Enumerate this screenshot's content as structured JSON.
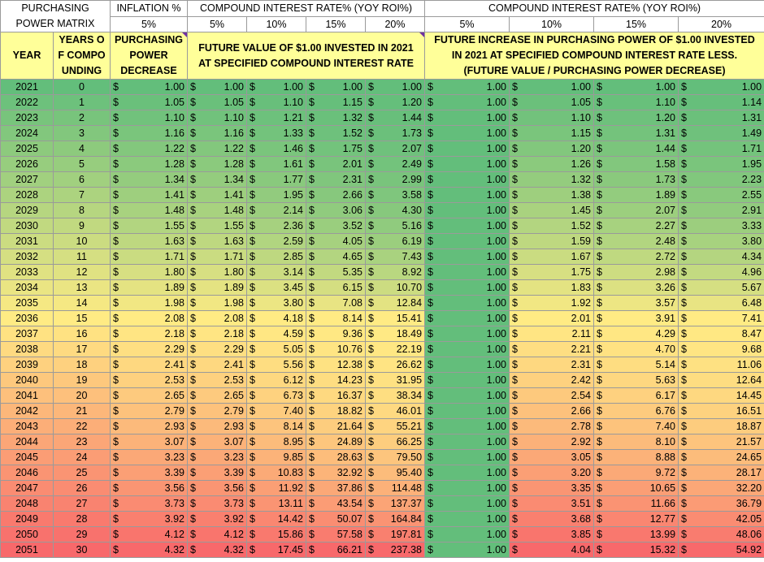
{
  "header": {
    "matrix_title": "PURCHASING POWER MATRIX",
    "inflation_label": "INFLATION %",
    "inflation_rate": "5%",
    "group1_label": "COMPOUND INTEREST RATE% (YOY ROI%)",
    "group2_label": "COMPOUND INTEREST RATE% (YOY ROI%)",
    "rates": [
      "5%",
      "10%",
      "15%",
      "20%"
    ],
    "col_year": "YEAR",
    "col_years": "YEARS OF COMPOUNDING",
    "col_pp": "PURCHASING POWER DECREASE",
    "col_fv": "FUTURE VALUE OF $1.00 INVESTED IN 2021 AT SPECIFIED COMPOUND INTEREST RATE",
    "col_fi": "FUTURE INCREASE IN PURCHASING POWER OF $1.00 INVESTED IN 2021 AT SPECIFIED COMPOUND INTEREST RATE LESS. (FUTURE VALUE / PURCHASING POWER DECREASE)"
  },
  "currency_symbol": "$",
  "rows": [
    {
      "year": "2021",
      "n": "0",
      "pp": "1.00",
      "fv": [
        "1.00",
        "1.00",
        "1.00",
        "1.00"
      ],
      "fi": [
        "1.00",
        "1.00",
        "1.00",
        "1.00"
      ]
    },
    {
      "year": "2022",
      "n": "1",
      "pp": "1.05",
      "fv": [
        "1.05",
        "1.10",
        "1.15",
        "1.20"
      ],
      "fi": [
        "1.00",
        "1.05",
        "1.10",
        "1.14"
      ]
    },
    {
      "year": "2023",
      "n": "2",
      "pp": "1.10",
      "fv": [
        "1.10",
        "1.21",
        "1.32",
        "1.44"
      ],
      "fi": [
        "1.00",
        "1.10",
        "1.20",
        "1.31"
      ]
    },
    {
      "year": "2024",
      "n": "3",
      "pp": "1.16",
      "fv": [
        "1.16",
        "1.33",
        "1.52",
        "1.73"
      ],
      "fi": [
        "1.00",
        "1.15",
        "1.31",
        "1.49"
      ]
    },
    {
      "year": "2025",
      "n": "4",
      "pp": "1.22",
      "fv": [
        "1.22",
        "1.46",
        "1.75",
        "2.07"
      ],
      "fi": [
        "1.00",
        "1.20",
        "1.44",
        "1.71"
      ]
    },
    {
      "year": "2026",
      "n": "5",
      "pp": "1.28",
      "fv": [
        "1.28",
        "1.61",
        "2.01",
        "2.49"
      ],
      "fi": [
        "1.00",
        "1.26",
        "1.58",
        "1.95"
      ]
    },
    {
      "year": "2027",
      "n": "6",
      "pp": "1.34",
      "fv": [
        "1.34",
        "1.77",
        "2.31",
        "2.99"
      ],
      "fi": [
        "1.00",
        "1.32",
        "1.73",
        "2.23"
      ]
    },
    {
      "year": "2028",
      "n": "7",
      "pp": "1.41",
      "fv": [
        "1.41",
        "1.95",
        "2.66",
        "3.58"
      ],
      "fi": [
        "1.00",
        "1.38",
        "1.89",
        "2.55"
      ]
    },
    {
      "year": "2029",
      "n": "8",
      "pp": "1.48",
      "fv": [
        "1.48",
        "2.14",
        "3.06",
        "4.30"
      ],
      "fi": [
        "1.00",
        "1.45",
        "2.07",
        "2.91"
      ]
    },
    {
      "year": "2030",
      "n": "9",
      "pp": "1.55",
      "fv": [
        "1.55",
        "2.36",
        "3.52",
        "5.16"
      ],
      "fi": [
        "1.00",
        "1.52",
        "2.27",
        "3.33"
      ]
    },
    {
      "year": "2031",
      "n": "10",
      "pp": "1.63",
      "fv": [
        "1.63",
        "2.59",
        "4.05",
        "6.19"
      ],
      "fi": [
        "1.00",
        "1.59",
        "2.48",
        "3.80"
      ]
    },
    {
      "year": "2032",
      "n": "11",
      "pp": "1.71",
      "fv": [
        "1.71",
        "2.85",
        "4.65",
        "7.43"
      ],
      "fi": [
        "1.00",
        "1.67",
        "2.72",
        "4.34"
      ]
    },
    {
      "year": "2033",
      "n": "12",
      "pp": "1.80",
      "fv": [
        "1.80",
        "3.14",
        "5.35",
        "8.92"
      ],
      "fi": [
        "1.00",
        "1.75",
        "2.98",
        "4.96"
      ]
    },
    {
      "year": "2034",
      "n": "13",
      "pp": "1.89",
      "fv": [
        "1.89",
        "3.45",
        "6.15",
        "10.70"
      ],
      "fi": [
        "1.00",
        "1.83",
        "3.26",
        "5.67"
      ]
    },
    {
      "year": "2035",
      "n": "14",
      "pp": "1.98",
      "fv": [
        "1.98",
        "3.80",
        "7.08",
        "12.84"
      ],
      "fi": [
        "1.00",
        "1.92",
        "3.57",
        "6.48"
      ]
    },
    {
      "year": "2036",
      "n": "15",
      "pp": "2.08",
      "fv": [
        "2.08",
        "4.18",
        "8.14",
        "15.41"
      ],
      "fi": [
        "1.00",
        "2.01",
        "3.91",
        "7.41"
      ]
    },
    {
      "year": "2037",
      "n": "16",
      "pp": "2.18",
      "fv": [
        "2.18",
        "4.59",
        "9.36",
        "18.49"
      ],
      "fi": [
        "1.00",
        "2.11",
        "4.29",
        "8.47"
      ]
    },
    {
      "year": "2038",
      "n": "17",
      "pp": "2.29",
      "fv": [
        "2.29",
        "5.05",
        "10.76",
        "22.19"
      ],
      "fi": [
        "1.00",
        "2.21",
        "4.70",
        "9.68"
      ]
    },
    {
      "year": "2039",
      "n": "18",
      "pp": "2.41",
      "fv": [
        "2.41",
        "5.56",
        "12.38",
        "26.62"
      ],
      "fi": [
        "1.00",
        "2.31",
        "5.14",
        "11.06"
      ]
    },
    {
      "year": "2040",
      "n": "19",
      "pp": "2.53",
      "fv": [
        "2.53",
        "6.12",
        "14.23",
        "31.95"
      ],
      "fi": [
        "1.00",
        "2.42",
        "5.63",
        "12.64"
      ]
    },
    {
      "year": "2041",
      "n": "20",
      "pp": "2.65",
      "fv": [
        "2.65",
        "6.73",
        "16.37",
        "38.34"
      ],
      "fi": [
        "1.00",
        "2.54",
        "6.17",
        "14.45"
      ]
    },
    {
      "year": "2042",
      "n": "21",
      "pp": "2.79",
      "fv": [
        "2.79",
        "7.40",
        "18.82",
        "46.01"
      ],
      "fi": [
        "1.00",
        "2.66",
        "6.76",
        "16.51"
      ]
    },
    {
      "year": "2043",
      "n": "22",
      "pp": "2.93",
      "fv": [
        "2.93",
        "8.14",
        "21.64",
        "55.21"
      ],
      "fi": [
        "1.00",
        "2.78",
        "7.40",
        "18.87"
      ]
    },
    {
      "year": "2044",
      "n": "23",
      "pp": "3.07",
      "fv": [
        "3.07",
        "8.95",
        "24.89",
        "66.25"
      ],
      "fi": [
        "1.00",
        "2.92",
        "8.10",
        "21.57"
      ]
    },
    {
      "year": "2045",
      "n": "24",
      "pp": "3.23",
      "fv": [
        "3.23",
        "9.85",
        "28.63",
        "79.50"
      ],
      "fi": [
        "1.00",
        "3.05",
        "8.88",
        "24.65"
      ]
    },
    {
      "year": "2046",
      "n": "25",
      "pp": "3.39",
      "fv": [
        "3.39",
        "10.83",
        "32.92",
        "95.40"
      ],
      "fi": [
        "1.00",
        "3.20",
        "9.72",
        "28.17"
      ]
    },
    {
      "year": "2047",
      "n": "26",
      "pp": "3.56",
      "fv": [
        "3.56",
        "11.92",
        "37.86",
        "114.48"
      ],
      "fi": [
        "1.00",
        "3.35",
        "10.65",
        "32.20"
      ]
    },
    {
      "year": "2048",
      "n": "27",
      "pp": "3.73",
      "fv": [
        "3.73",
        "13.11",
        "43.54",
        "137.37"
      ],
      "fi": [
        "1.00",
        "3.51",
        "11.66",
        "36.79"
      ]
    },
    {
      "year": "2049",
      "n": "28",
      "pp": "3.92",
      "fv": [
        "3.92",
        "14.42",
        "50.07",
        "164.84"
      ],
      "fi": [
        "1.00",
        "3.68",
        "12.77",
        "42.05"
      ]
    },
    {
      "year": "2050",
      "n": "29",
      "pp": "4.12",
      "fv": [
        "4.12",
        "15.86",
        "57.58",
        "197.81"
      ],
      "fi": [
        "1.00",
        "3.85",
        "13.99",
        "48.06"
      ]
    },
    {
      "year": "2051",
      "n": "30",
      "pp": "4.32",
      "fv": [
        "4.32",
        "17.45",
        "66.21",
        "237.38"
      ],
      "fi": [
        "1.00",
        "4.04",
        "15.32",
        "54.92"
      ]
    }
  ],
  "colors": {
    "header_yellow": "#ffff99",
    "scale_low": "#63be7b",
    "scale_mid": "#ffeb84",
    "scale_high": "#f8696b",
    "comment_marker": "#7030a0"
  }
}
